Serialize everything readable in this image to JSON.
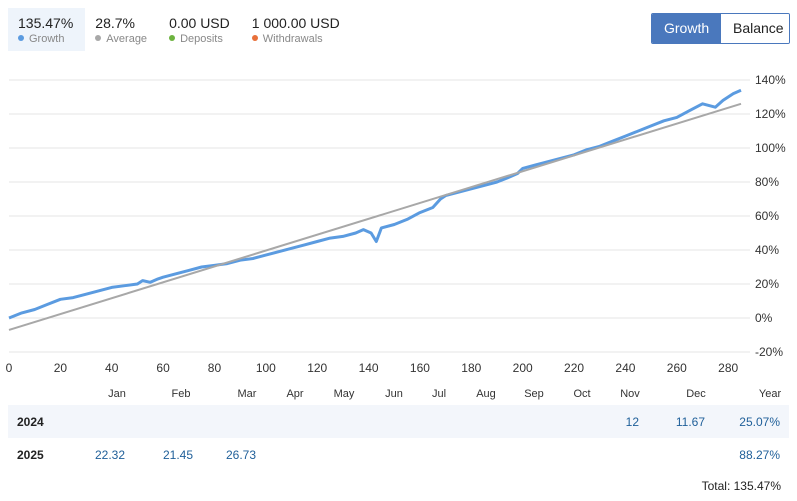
{
  "stats": [
    {
      "value": "135.47%",
      "label": "Growth",
      "color": "#5b9be0",
      "active": true
    },
    {
      "value": "28.7%",
      "label": "Average",
      "color": "#a8a8a8",
      "active": false
    },
    {
      "value": "0.00 USD",
      "label": "Deposits",
      "color": "#6db33f",
      "active": false
    },
    {
      "value": "1 000.00 USD",
      "label": "Withdrawals",
      "color": "#e8703a",
      "active": false
    }
  ],
  "toggle": {
    "growth_label": "Growth",
    "balance_label": "Balance",
    "selected": "Growth",
    "accent": "#4a78bd"
  },
  "chart_data": {
    "type": "line",
    "x_ticks": [
      0,
      20,
      40,
      60,
      80,
      100,
      120,
      140,
      160,
      180,
      200,
      220,
      240,
      260,
      280
    ],
    "y_ticks": [
      "140%",
      "120%",
      "100%",
      "80%",
      "60%",
      "40%",
      "20%",
      "0%",
      "-20%"
    ],
    "ylim": [
      -20,
      140
    ],
    "xlim": [
      0,
      285
    ],
    "grid": true,
    "series": [
      {
        "name": "Growth",
        "color": "#5b9be0",
        "points": [
          [
            0,
            0
          ],
          [
            5,
            3
          ],
          [
            10,
            5
          ],
          [
            15,
            8
          ],
          [
            20,
            11
          ],
          [
            25,
            12
          ],
          [
            30,
            14
          ],
          [
            35,
            16
          ],
          [
            40,
            18
          ],
          [
            45,
            19
          ],
          [
            50,
            20
          ],
          [
            52,
            22
          ],
          [
            55,
            21
          ],
          [
            58,
            23
          ],
          [
            60,
            24
          ],
          [
            65,
            26
          ],
          [
            70,
            28
          ],
          [
            75,
            30
          ],
          [
            80,
            31
          ],
          [
            85,
            32
          ],
          [
            90,
            34
          ],
          [
            95,
            35
          ],
          [
            100,
            37
          ],
          [
            105,
            39
          ],
          [
            110,
            41
          ],
          [
            115,
            43
          ],
          [
            120,
            45
          ],
          [
            125,
            47
          ],
          [
            130,
            48
          ],
          [
            135,
            50
          ],
          [
            138,
            52
          ],
          [
            141,
            50
          ],
          [
            143,
            45
          ],
          [
            145,
            53
          ],
          [
            150,
            55
          ],
          [
            155,
            58
          ],
          [
            160,
            62
          ],
          [
            165,
            65
          ],
          [
            168,
            70
          ],
          [
            170,
            72
          ],
          [
            175,
            74
          ],
          [
            180,
            76
          ],
          [
            185,
            78
          ],
          [
            190,
            80
          ],
          [
            195,
            83
          ],
          [
            198,
            85
          ],
          [
            200,
            88
          ],
          [
            205,
            90
          ],
          [
            210,
            92
          ],
          [
            215,
            94
          ],
          [
            220,
            96
          ],
          [
            225,
            99
          ],
          [
            230,
            101
          ],
          [
            235,
            104
          ],
          [
            240,
            107
          ],
          [
            245,
            110
          ],
          [
            250,
            113
          ],
          [
            255,
            116
          ],
          [
            260,
            118
          ],
          [
            265,
            122
          ],
          [
            270,
            126
          ],
          [
            275,
            124
          ],
          [
            278,
            128
          ],
          [
            282,
            132
          ],
          [
            285,
            134
          ]
        ]
      },
      {
        "name": "Average",
        "color": "#a8a8a8",
        "points": [
          [
            0,
            -7
          ],
          [
            285,
            126
          ]
        ]
      }
    ]
  },
  "months": [
    "Jan",
    "Feb",
    "Mar",
    "Apr",
    "May",
    "Jun",
    "Jul",
    "Aug",
    "Sep",
    "Oct",
    "Nov",
    "Dec",
    "Year"
  ],
  "table": {
    "rows": [
      {
        "year": "2024",
        "cells": [
          {
            "col": "Nov",
            "value": "12"
          },
          {
            "col": "Dec",
            "value": "11.67"
          },
          {
            "col": "Year",
            "value": "25.07%"
          }
        ]
      },
      {
        "year": "2025",
        "cells": [
          {
            "col": "Jan",
            "value": "22.32"
          },
          {
            "col": "Feb",
            "value": "21.45"
          },
          {
            "col": "Mar",
            "value": "26.73"
          },
          {
            "col": "Year",
            "value": "88.27%"
          }
        ]
      }
    ]
  },
  "total": "Total: 135.47%"
}
